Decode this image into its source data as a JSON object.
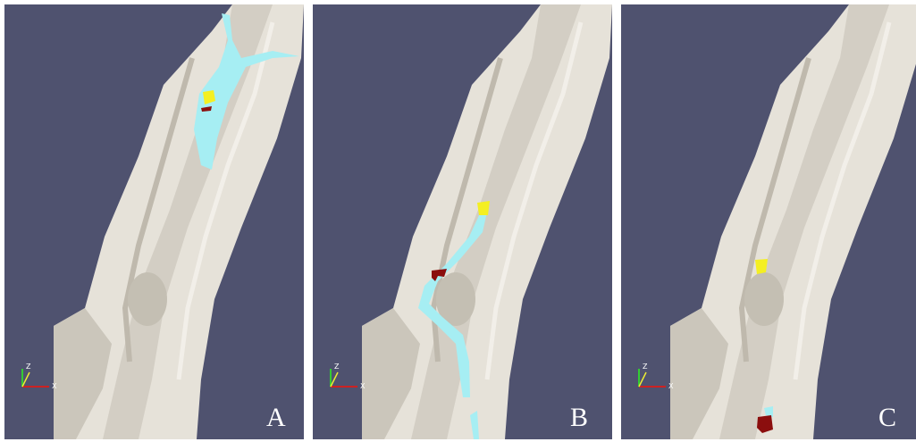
{
  "panels": [
    {
      "label": "A",
      "axis_labels": [
        "Z",
        "X"
      ]
    },
    {
      "label": "B",
      "axis_labels": [
        "Z",
        "X"
      ]
    },
    {
      "label": "C",
      "axis_labels": [
        "Z",
        "X"
      ]
    }
  ]
}
